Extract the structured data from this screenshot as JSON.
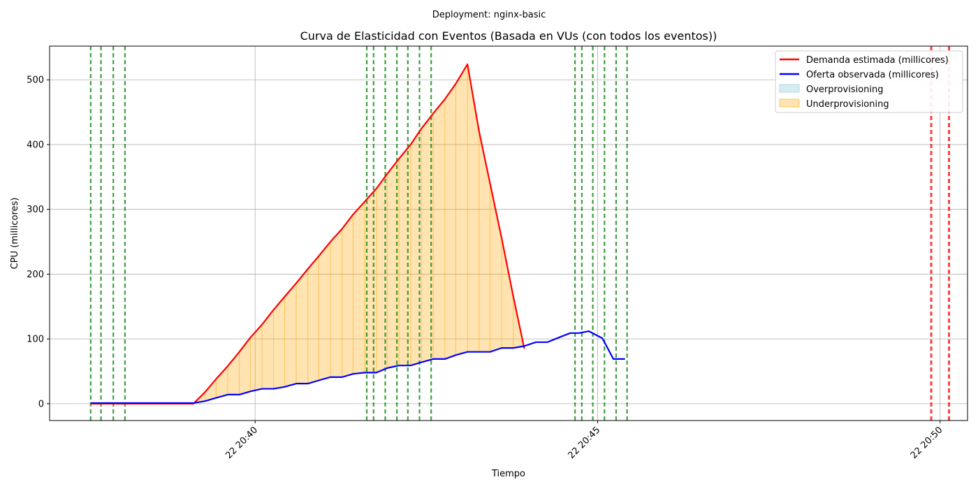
{
  "suptitle": "Deployment: nginx-basic",
  "chart_data": {
    "type": "line",
    "title": "Curva de Elasticidad con Eventos (Basada en VUs (con todos los eventos))",
    "xlabel": "Tiempo",
    "ylabel": "CPU (millicores)",
    "x_unit": "minutes",
    "xlim": [
      "22 20:37",
      "22 20:50.4"
    ],
    "ylim": [
      -26,
      552
    ],
    "x_ticks": [
      {
        "label": "22 20:40",
        "value": "22 20:40"
      },
      {
        "label": "22 20:45",
        "value": "22 20:45"
      },
      {
        "label": "22 20:50",
        "value": "22 20:50"
      }
    ],
    "y_ticks": [
      0,
      100,
      200,
      300,
      400,
      500
    ],
    "grid": true,
    "legend_position": "upper right",
    "x": [
      "22 20:37.6",
      "22 20:37.77",
      "22 20:37.93",
      "22 20:38.1",
      "22 20:38.27",
      "22 20:38.43",
      "22 20:38.6",
      "22 20:38.77",
      "22 20:38.93",
      "22 20:39.1",
      "22 20:39.27",
      "22 20:39.43",
      "22 20:39.6",
      "22 20:39.77",
      "22 20:39.93",
      "22 20:40.1",
      "22 20:40.27",
      "22 20:40.43",
      "22 20:40.6",
      "22 20:40.77",
      "22 20:40.93",
      "22 20:41.1",
      "22 20:41.27",
      "22 20:41.43",
      "22 20:41.6",
      "22 20:41.77",
      "22 20:41.93",
      "22 20:42.1",
      "22 20:42.27",
      "22 20:42.43",
      "22 20:42.6",
      "22 20:42.77",
      "22 20:42.93",
      "22 20:43.1",
      "22 20:43.27",
      "22 20:43.43",
      "22 20:43.6",
      "22 20:43.77",
      "22 20:43.93",
      "22 20:44.1",
      "22 20:44.27",
      "22 20:44.43",
      "22 20:44.6",
      "22 20:44.73",
      "22 20:44.87",
      "22 20:45.07",
      "22 20:45.23",
      "22 20:45.4"
    ],
    "series": [
      {
        "name": "Demanda estimada (millicores)",
        "color": "#ff0000",
        "values": [
          0,
          0,
          0,
          0,
          0,
          0,
          0,
          0,
          0,
          0,
          18,
          38,
          58,
          80,
          102,
          122,
          145,
          165,
          186,
          208,
          228,
          250,
          270,
          292,
          312,
          332,
          355,
          378,
          400,
          425,
          448,
          470,
          494,
          524,
          420,
          340,
          255,
          165,
          85,
          null,
          null,
          null,
          null,
          null,
          null,
          null,
          null,
          null
        ]
      },
      {
        "name": "Oferta observada (millicores)",
        "color": "#0000ff",
        "values": [
          1,
          1,
          1,
          1,
          1,
          1,
          1,
          1,
          1,
          1,
          4,
          9,
          14,
          14,
          19,
          23,
          23,
          26,
          31,
          31,
          36,
          41,
          41,
          46,
          48,
          48,
          55,
          59,
          59,
          64,
          69,
          69,
          75,
          80,
          80,
          80,
          86,
          86,
          89,
          95,
          95,
          102,
          109,
          109,
          112,
          101,
          69,
          69
        ]
      }
    ],
    "fill_legend": [
      {
        "label": "Overprovisioning",
        "color": "#add8e6"
      },
      {
        "label": "Underprovisioning",
        "color": "#ffa500"
      }
    ],
    "events": {
      "green": [
        "22 20:37.6",
        "22 20:37.75",
        "22 20:37.93",
        "22 20:38.1",
        "22 20:41.63",
        "22 20:41.73",
        "22 20:41.9",
        "22 20:42.07",
        "22 20:42.23",
        "22 20:42.4",
        "22 20:42.57",
        "22 20:44.67",
        "22 20:44.77",
        "22 20:44.93",
        "22 20:45.1",
        "22 20:45.27",
        "22 20:45.43"
      ],
      "green_color": "#008000",
      "red": [
        "22 20:49.87",
        "22 20:50.13"
      ],
      "red_color": "#ff0000"
    }
  }
}
